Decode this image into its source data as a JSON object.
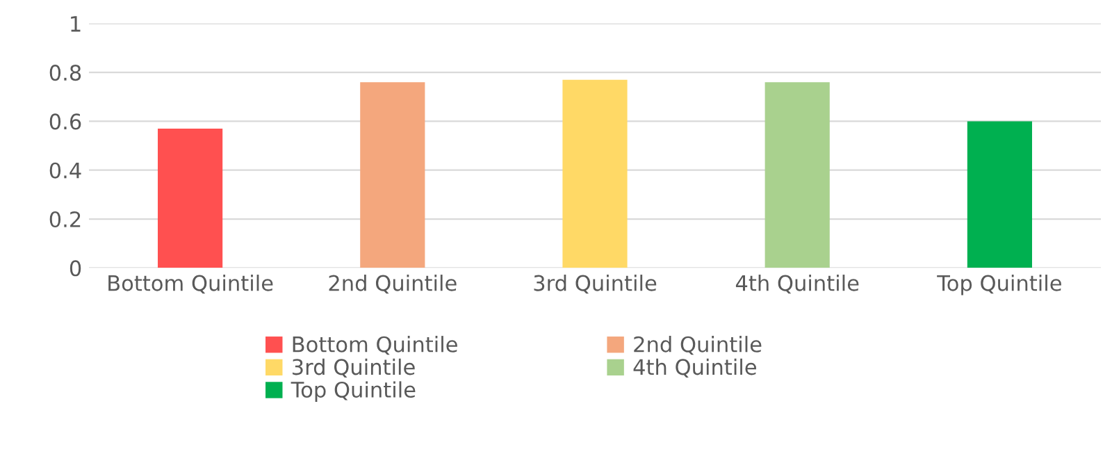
{
  "chart_data": {
    "type": "bar",
    "categories": [
      "Bottom Quintile",
      "2nd Quintile",
      "3rd Quintile",
      "4th Quintile",
      "Top Quintile"
    ],
    "series": [
      {
        "name": "Bottom Quintile",
        "color": "#ff5050",
        "values": [
          0.57,
          null,
          null,
          null,
          null
        ]
      },
      {
        "name": "2nd Quintile",
        "color": "#f4a77d",
        "values": [
          null,
          0.76,
          null,
          null,
          null
        ]
      },
      {
        "name": "3rd Quintile",
        "color": "#ffd966",
        "values": [
          null,
          null,
          0.77,
          null,
          null
        ]
      },
      {
        "name": "4th Quintile",
        "color": "#a9d18e",
        "values": [
          null,
          null,
          null,
          0.76,
          null
        ]
      },
      {
        "name": "Top Quintile",
        "color": "#00b050",
        "values": [
          null,
          null,
          null,
          null,
          0.6
        ]
      }
    ],
    "ylim": [
      0,
      1
    ],
    "yticks": [
      0,
      0.2,
      0.4,
      0.6,
      0.8,
      1
    ],
    "grid": "y",
    "legend": "bottom"
  }
}
